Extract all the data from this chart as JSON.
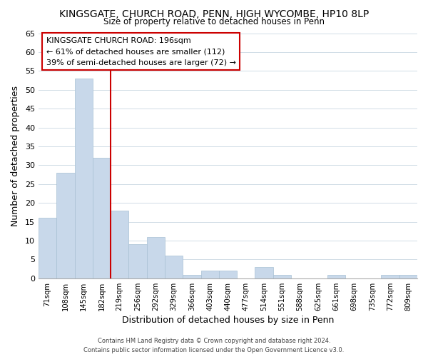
{
  "title": "KINGSGATE, CHURCH ROAD, PENN, HIGH WYCOMBE, HP10 8LP",
  "subtitle": "Size of property relative to detached houses in Penn",
  "xlabel": "Distribution of detached houses by size in Penn",
  "ylabel": "Number of detached properties",
  "bar_color": "#c8d8ea",
  "bar_edge_color": "#a8c0d4",
  "categories": [
    "71sqm",
    "108sqm",
    "145sqm",
    "182sqm",
    "219sqm",
    "256sqm",
    "292sqm",
    "329sqm",
    "366sqm",
    "403sqm",
    "440sqm",
    "477sqm",
    "514sqm",
    "551sqm",
    "588sqm",
    "625sqm",
    "661sqm",
    "698sqm",
    "735sqm",
    "772sqm",
    "809sqm"
  ],
  "values": [
    16,
    28,
    53,
    32,
    18,
    9,
    11,
    6,
    1,
    2,
    2,
    0,
    3,
    1,
    0,
    0,
    1,
    0,
    0,
    1,
    1
  ],
  "vline_pos": 3.5,
  "vline_color": "#cc0000",
  "ylim": [
    0,
    65
  ],
  "yticks": [
    0,
    5,
    10,
    15,
    20,
    25,
    30,
    35,
    40,
    45,
    50,
    55,
    60,
    65
  ],
  "annotation_title": "KINGSGATE CHURCH ROAD: 196sqm",
  "annotation_line1": "← 61% of detached houses are smaller (112)",
  "annotation_line2": "39% of semi-detached houses are larger (72) →",
  "footer1": "Contains HM Land Registry data © Crown copyright and database right 2024.",
  "footer2": "Contains public sector information licensed under the Open Government Licence v3.0.",
  "background_color": "#ffffff",
  "grid_color": "#d0dce6"
}
